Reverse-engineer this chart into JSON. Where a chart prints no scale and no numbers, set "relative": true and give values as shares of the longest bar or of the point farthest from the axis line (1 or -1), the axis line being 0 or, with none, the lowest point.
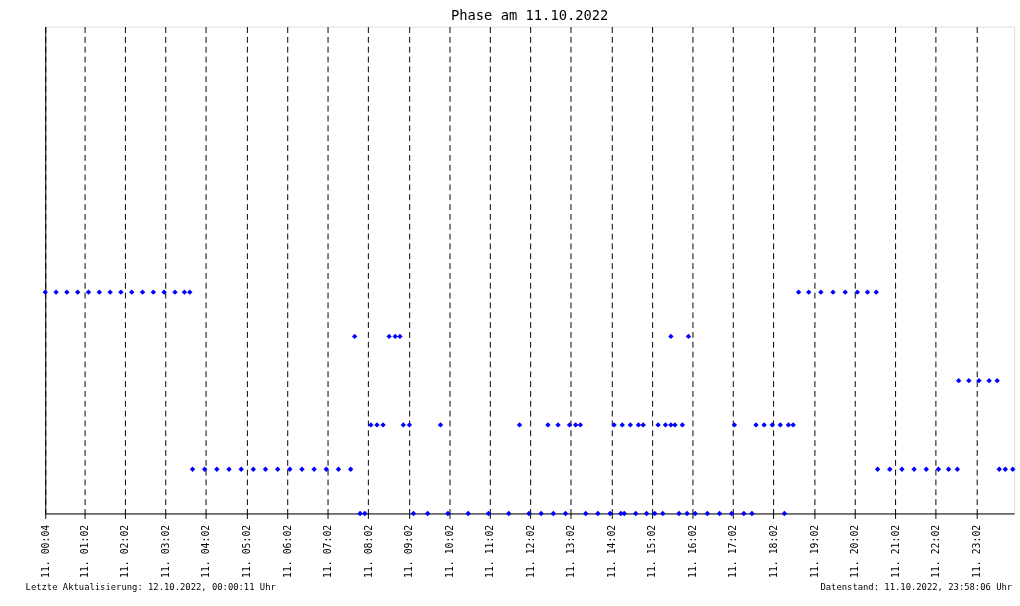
{
  "chart_data": {
    "type": "scatter",
    "title": "Phase am 11.10.2022",
    "relative": true,
    "marker": "diamond",
    "legend": false,
    "grid": "x",
    "xlim": [
      "2022-10-11T00:04",
      "2022-10-11T23:58"
    ],
    "xticks": [
      {
        "value": "2022-10-11T00:04",
        "label": "11. 00:04"
      },
      {
        "value": "2022-10-11T01:02",
        "label": "11. 01:02"
      },
      {
        "value": "2022-10-11T02:02",
        "label": "11. 02:02"
      },
      {
        "value": "2022-10-11T03:02",
        "label": "11. 03:02"
      },
      {
        "value": "2022-10-11T04:02",
        "label": "11. 04:02"
      },
      {
        "value": "2022-10-11T05:02",
        "label": "11. 05:02"
      },
      {
        "value": "2022-10-11T06:02",
        "label": "11. 06:02"
      },
      {
        "value": "2022-10-11T07:02",
        "label": "11. 07:02"
      },
      {
        "value": "2022-10-11T08:02",
        "label": "11. 08:02"
      },
      {
        "value": "2022-10-11T09:02",
        "label": "11. 09:02"
      },
      {
        "value": "2022-10-11T10:02",
        "label": "11. 10:02"
      },
      {
        "value": "2022-10-11T11:02",
        "label": "11. 11:02"
      },
      {
        "value": "2022-10-11T12:02",
        "label": "11. 12:02"
      },
      {
        "value": "2022-10-11T13:02",
        "label": "11. 13:02"
      },
      {
        "value": "2022-10-11T14:02",
        "label": "11. 14:02"
      },
      {
        "value": "2022-10-11T15:02",
        "label": "11. 15:02"
      },
      {
        "value": "2022-10-11T16:02",
        "label": "11. 16:02"
      },
      {
        "value": "2022-10-11T17:02",
        "label": "11. 17:02"
      },
      {
        "value": "2022-10-11T18:02",
        "label": "11. 18:02"
      },
      {
        "value": "2022-10-11T19:02",
        "label": "11. 19:02"
      },
      {
        "value": "2022-10-11T20:02",
        "label": "11. 20:02"
      },
      {
        "value": "2022-10-11T21:02",
        "label": "11. 21:02"
      },
      {
        "value": "2022-10-11T22:02",
        "label": "11. 22:02"
      },
      {
        "value": "2022-10-11T23:02",
        "label": "11. 23:02"
      }
    ],
    "annotations": [
      "Letzte Aktualisierung: 12.10.2022, 00:00:11 Uhr",
      "Datenstand: 11.10.2022, 23:58:06 Uhr"
    ],
    "series": [
      {
        "color": "#0000ff",
        "x": [
          "2022-10-11T00:04",
          "2022-10-11T00:20",
          "2022-10-11T00:36",
          "2022-10-11T00:52",
          "2022-10-11T01:08",
          "2022-10-11T01:24",
          "2022-10-11T01:40",
          "2022-10-11T01:56",
          "2022-10-11T02:12",
          "2022-10-11T02:28",
          "2022-10-11T02:44",
          "2022-10-11T03:00",
          "2022-10-11T03:16",
          "2022-10-11T03:30",
          "2022-10-11T03:38",
          "2022-10-11T03:42",
          "2022-10-11T04:00",
          "2022-10-11T04:18",
          "2022-10-11T04:36",
          "2022-10-11T04:54",
          "2022-10-11T05:12",
          "2022-10-11T05:30",
          "2022-10-11T05:48",
          "2022-10-11T06:06",
          "2022-10-11T06:24",
          "2022-10-11T06:42",
          "2022-10-11T07:00",
          "2022-10-11T07:18",
          "2022-10-11T07:36",
          "2022-10-11T07:42",
          "2022-10-11T07:50",
          "2022-10-11T07:57",
          "2022-10-11T08:06",
          "2022-10-11T08:15",
          "2022-10-11T08:24",
          "2022-10-11T08:33",
          "2022-10-11T08:42",
          "2022-10-11T08:49",
          "2022-10-11T08:54",
          "2022-10-11T09:03",
          "2022-10-11T09:09",
          "2022-10-11T09:30",
          "2022-10-11T09:49",
          "2022-10-11T10:00",
          "2022-10-11T10:30",
          "2022-10-11T11:00",
          "2022-10-11T11:30",
          "2022-10-11T11:46",
          "2022-10-11T12:00",
          "2022-10-11T12:18",
          "2022-10-11T12:28",
          "2022-10-11T12:36",
          "2022-10-11T12:43",
          "2022-10-11T12:54",
          "2022-10-11T13:00",
          "2022-10-11T13:09",
          "2022-10-11T13:16",
          "2022-10-11T13:24",
          "2022-10-11T13:42",
          "2022-10-11T14:00",
          "2022-10-11T14:06",
          "2022-10-11T14:16",
          "2022-10-11T14:18",
          "2022-10-11T14:21",
          "2022-10-11T14:30",
          "2022-10-11T14:38",
          "2022-10-11T14:42",
          "2022-10-11T14:49",
          "2022-10-11T14:54",
          "2022-10-11T15:06",
          "2022-10-11T15:11",
          "2022-10-11T15:18",
          "2022-10-11T15:22",
          "2022-10-11T15:30",
          "2022-10-11T15:30",
          "2022-10-11T15:36",
          "2022-10-11T15:42",
          "2022-10-11T15:47",
          "2022-10-11T15:54",
          "2022-10-11T15:56",
          "2022-10-11T16:06",
          "2022-10-11T16:24",
          "2022-10-11T16:42",
          "2022-10-11T17:00",
          "2022-10-11T17:04",
          "2022-10-11T17:18",
          "2022-10-11T17:30",
          "2022-10-11T17:36",
          "2022-10-11T17:48",
          "2022-10-11T18:00",
          "2022-10-11T18:12",
          "2022-10-11T18:18",
          "2022-10-11T18:24",
          "2022-10-11T18:31",
          "2022-10-11T18:39",
          "2022-10-11T18:54",
          "2022-10-11T19:12",
          "2022-10-11T19:30",
          "2022-10-11T19:48",
          "2022-10-11T20:06",
          "2022-10-11T20:21",
          "2022-10-11T20:34",
          "2022-10-11T20:36",
          "2022-10-11T20:54",
          "2022-10-11T21:12",
          "2022-10-11T21:30",
          "2022-10-11T21:48",
          "2022-10-11T22:06",
          "2022-10-11T22:21",
          "2022-10-11T22:34",
          "2022-10-11T22:36",
          "2022-10-11T22:51",
          "2022-10-11T23:06",
          "2022-10-11T23:21",
          "2022-10-11T23:33",
          "2022-10-11T23:36",
          "2022-10-11T23:45",
          "2022-10-11T23:56"
        ],
        "values": [
          1,
          1,
          1,
          1,
          1,
          1,
          1,
          1,
          1,
          1,
          1,
          1,
          1,
          1,
          1,
          0.2,
          0.2,
          0.2,
          0.2,
          0.2,
          0.2,
          0.2,
          0.2,
          0.2,
          0.2,
          0.2,
          0.2,
          0.2,
          0.2,
          0.8,
          0,
          0,
          0.4,
          0.4,
          0.4,
          0.8,
          0.8,
          0.8,
          0.4,
          0.4,
          0,
          0,
          0.4,
          0,
          0,
          0,
          0,
          0.4,
          0,
          0,
          0.4,
          0,
          0.4,
          0,
          0.4,
          0.4,
          0.4,
          0,
          0,
          0,
          0.4,
          0,
          0.4,
          0,
          0.4,
          0,
          0.4,
          0.4,
          0,
          0,
          0.4,
          0,
          0.4,
          0.4,
          0.8,
          0.4,
          0,
          0.4,
          0,
          0.8,
          0,
          0,
          0,
          0,
          0.4,
          0,
          0,
          0.4,
          0.4,
          0.4,
          0.4,
          0,
          0.4,
          0.4,
          1,
          1,
          1,
          1,
          1,
          1,
          1,
          1,
          0.2,
          0.2,
          0.2,
          0.2,
          0.2,
          0.2,
          0.2,
          0.2,
          0.6,
          0.6,
          0.6,
          0.6,
          0.6,
          0.2,
          0.2,
          0.2
        ]
      }
    ]
  }
}
